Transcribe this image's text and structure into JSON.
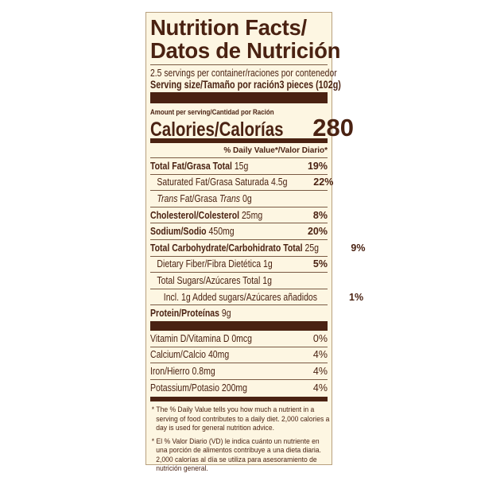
{
  "title_line1": "Nutrition Facts/",
  "title_line2": "Datos de Nutrición",
  "servings": "2.5 servings per container/raciones por contenedor",
  "serving_size_label": "Serving size/Tamaño por ración",
  "serving_size_value": "3 pieces (102g)",
  "amount_per": "Amount per serving/Cantidad por Ración",
  "calories_label": "Calories/Calorías",
  "calories_value": "280",
  "dv_header": "% Daily Value*/Valor Diario*",
  "nutrients": [
    {
      "name": "Total Fat/Grasa Total",
      "amount": "15g",
      "dv": "19%"
    },
    {
      "name": "Saturated Fat/Grasa Saturada",
      "amount": "4.5g",
      "dv": "22%"
    },
    {
      "name": "Trans Fat/Grasa Trans",
      "amount": "0g",
      "dv": ""
    },
    {
      "name": "Cholesterol/Colesterol",
      "amount": "25mg",
      "dv": "8%"
    },
    {
      "name": "Sodium/Sodio",
      "amount": "450mg",
      "dv": "20%"
    },
    {
      "name": "Total Carbohydrate/Carbohidrato Total",
      "amount": "25g",
      "dv": "9%"
    },
    {
      "name": "Dietary Fiber/Fibra Dietética",
      "amount": "1g",
      "dv": "5%"
    },
    {
      "name": "Total Sugars/Azúcares Total",
      "amount": "1g",
      "dv": ""
    },
    {
      "name": "Incl. 1g Added sugars/Azúcares añadidos",
      "amount": "",
      "dv": "1%"
    },
    {
      "name": "Protein/Proteínas",
      "amount": "9g",
      "dv": ""
    }
  ],
  "vitamins": [
    {
      "name": "Vitamin D/Vitamina D",
      "amount": "0mcg",
      "dv": "0%"
    },
    {
      "name": "Calcium/Calcio",
      "amount": "40mg",
      "dv": "4%"
    },
    {
      "name": "Iron/Hierro",
      "amount": "0.8mg",
      "dv": "4%"
    },
    {
      "name": "Potassium/Potasio",
      "amount": "200mg",
      "dv": "4%"
    }
  ],
  "footnote_en": "* The % Daily Value tells you how much a nutrient in a serving of food contributes to a daily diet. 2,000 calories a day is used for general nutrition advice.",
  "footnote_es": "* El % Valor Diario (VD) le indica cuánto un nutriente en una porción de alimentos contribuye a una dieta diaria. 2,000 calorías al día se utiliza para asesoramiento de nutrición general."
}
